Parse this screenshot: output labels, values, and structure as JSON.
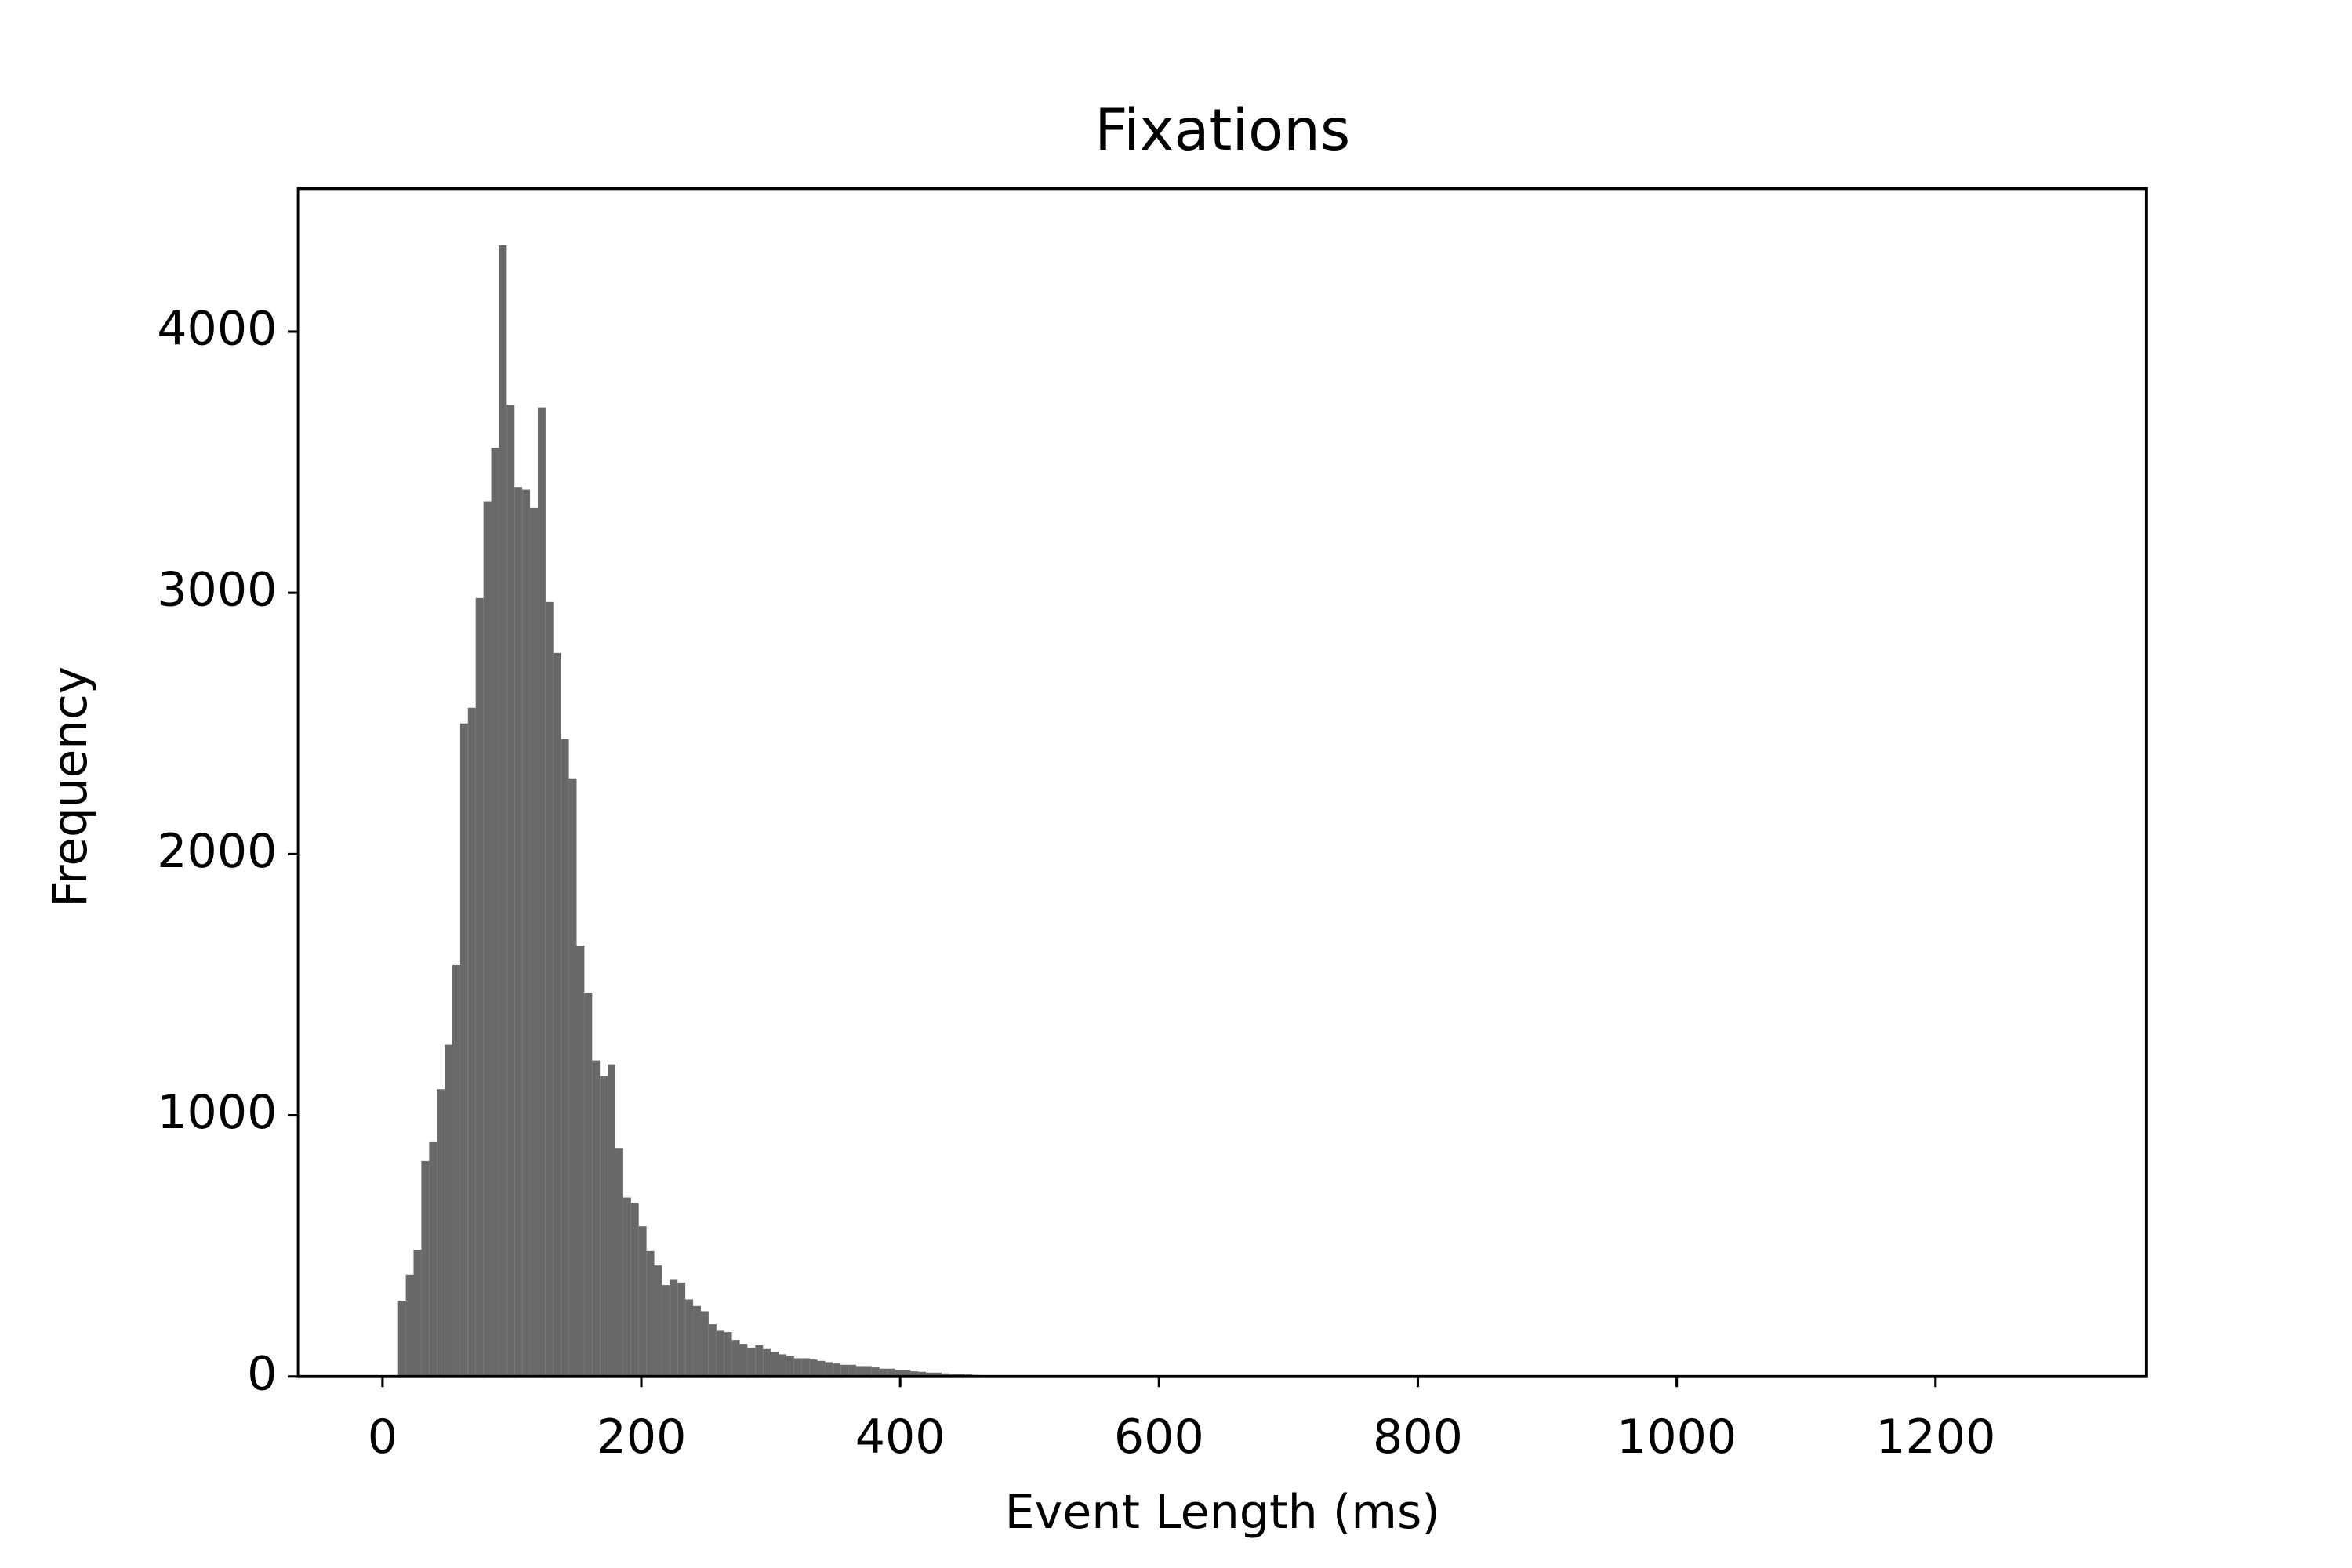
{
  "chart_data": {
    "type": "histogram",
    "title": "Fixations",
    "x_label": "Event Length (ms)",
    "y_label": "Frequency",
    "color": "#696969",
    "bins": [
      0,
      6,
      12,
      18,
      24,
      30,
      36,
      42,
      48,
      54,
      60,
      66,
      72,
      78,
      84,
      90,
      96,
      102,
      108,
      114,
      120,
      126,
      132,
      138,
      144,
      150,
      156,
      162,
      168,
      174,
      180,
      186,
      192,
      198,
      204,
      210,
      216,
      222,
      228,
      234,
      240,
      246,
      252,
      258,
      264,
      270,
      276,
      282,
      288,
      294,
      300,
      306,
      312,
      318,
      324,
      330,
      336,
      342,
      348,
      354,
      360,
      366,
      372,
      378,
      384,
      390,
      396,
      402,
      408,
      414,
      420,
      426,
      432,
      438,
      444,
      450,
      456,
      462,
      468,
      474,
      480,
      486,
      492,
      498,
      504
    ],
    "counts": [
      0,
      0,
      290,
      390,
      485,
      825,
      900,
      1100,
      1270,
      1575,
      2500,
      2560,
      2980,
      3350,
      3555,
      4330,
      3720,
      3405,
      3395,
      3325,
      3710,
      2965,
      2770,
      2440,
      2290,
      1650,
      1470,
      1210,
      1150,
      1195,
      875,
      685,
      665,
      575,
      480,
      425,
      350,
      370,
      360,
      295,
      270,
      250,
      200,
      175,
      170,
      140,
      125,
      110,
      120,
      105,
      95,
      85,
      80,
      70,
      70,
      65,
      60,
      55,
      50,
      45,
      45,
      40,
      40,
      35,
      30,
      30,
      25,
      25,
      20,
      18,
      15,
      15,
      12,
      10,
      10,
      8,
      6,
      5,
      4,
      3,
      2,
      2,
      1,
      1
    ],
    "xlim": [
      -65,
      1363
    ],
    "ylim": [
      0,
      4548
    ],
    "xticks": [
      0,
      200,
      400,
      600,
      800,
      1000,
      1200
    ],
    "yticks": [
      0,
      1000,
      2000,
      3000,
      4000
    ],
    "grid": false
  }
}
